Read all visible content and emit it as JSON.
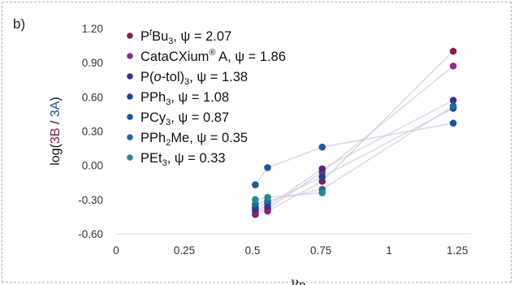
{
  "panel_label": "b)",
  "chart_data": {
    "type": "scatter",
    "xlabel": "νB",
    "ylabel": {
      "prefix": "log(",
      "num": "3B",
      "sep": " / ",
      "den": "3A",
      "suffix": ")"
    },
    "xlim": [
      0,
      1.3
    ],
    "ylim": [
      -0.6,
      1.2
    ],
    "x_ticks": [
      0,
      0.25,
      0.5,
      0.75,
      1,
      1.25
    ],
    "x_tick_labels": [
      "0",
      "0.25",
      "0.5",
      "0.75",
      "1",
      "1.25"
    ],
    "y_ticks": [
      -0.6,
      -0.3,
      0,
      0.3,
      0.6,
      0.9,
      1.2
    ],
    "y_tick_labels": [
      "-0.60",
      "-0.30",
      "0.00",
      "0.30",
      "0.60",
      "0.90",
      "1.20"
    ],
    "grid": false,
    "legend_position": "top-left",
    "colors": {
      "num": "#8b1a4e",
      "den": "#1f4e9b",
      "trend": "#d4cbe2"
    },
    "series": [
      {
        "name": "PtBu3, ψ = 2.07",
        "color": "#8c1a4f",
        "x": [
          0.51,
          0.555,
          0.755,
          1.235
        ],
        "y": [
          -0.43,
          -0.4,
          -0.14,
          1.0
        ]
      },
      {
        "name": "CataCXium® A, ψ = 1.86",
        "color": "#8f2b8e",
        "x": [
          0.51,
          0.555,
          0.755,
          1.235
        ],
        "y": [
          -0.41,
          -0.38,
          -0.06,
          0.87
        ]
      },
      {
        "name": "P(o-tol)3, ψ = 1.38",
        "color": "#4b2a85",
        "x": [
          0.51,
          0.555,
          0.755,
          1.235
        ],
        "y": [
          -0.39,
          -0.36,
          -0.03,
          0.57
        ]
      },
      {
        "name": "PPh3, ψ = 1.08",
        "color": "#14449a",
        "x": [
          0.51,
          0.555,
          0.755,
          1.235
        ],
        "y": [
          -0.37,
          -0.33,
          -0.1,
          0.5
        ]
      },
      {
        "name": "PCy3, ψ = 0.87",
        "color": "#1a58a2",
        "x": [
          0.51,
          0.555,
          0.755,
          1.235
        ],
        "y": [
          -0.17,
          -0.02,
          0.16,
          0.37
        ]
      },
      {
        "name": "PPh2Me, ψ = 0.35",
        "color": "#1f6b95",
        "x": [
          0.51,
          0.555,
          0.755,
          1.235
        ],
        "y": [
          -0.34,
          -0.31,
          -0.21,
          0.52
        ]
      },
      {
        "name": "PEt3, ψ = 0.33",
        "color": "#258a92",
        "x": [
          0.51,
          0.555,
          0.755
        ],
        "y": [
          -0.3,
          -0.28,
          -0.24
        ]
      }
    ],
    "legend": [
      {
        "color": "#8c1a4f",
        "parts": [
          {
            "t": "P"
          },
          {
            "t": "t",
            "style": "sup-italic"
          },
          {
            "t": "Bu"
          },
          {
            "t": "3",
            "style": "sub"
          },
          {
            "t": ", ψ = 2.07"
          }
        ]
      },
      {
        "color": "#8f2b8e",
        "parts": [
          {
            "t": "CataCXium"
          },
          {
            "t": "®",
            "style": "sup"
          },
          {
            "t": " A, ψ = 1.86"
          }
        ]
      },
      {
        "color": "#4b2a85",
        "parts": [
          {
            "t": "P("
          },
          {
            "t": "o",
            "style": "italic"
          },
          {
            "t": "-tol)"
          },
          {
            "t": "3",
            "style": "sub"
          },
          {
            "t": ", ψ = 1.38"
          }
        ]
      },
      {
        "color": "#14449a",
        "parts": [
          {
            "t": "PPh"
          },
          {
            "t": "3",
            "style": "sub"
          },
          {
            "t": ", ψ = 1.08"
          }
        ]
      },
      {
        "color": "#1a58a2",
        "parts": [
          {
            "t": "PCy"
          },
          {
            "t": "3",
            "style": "sub"
          },
          {
            "t": ", ψ = 0.87"
          }
        ]
      },
      {
        "color": "#1f6b95",
        "parts": [
          {
            "t": "PPh"
          },
          {
            "t": "2",
            "style": "sub"
          },
          {
            "t": "Me, ψ = 0.35"
          }
        ]
      },
      {
        "color": "#258a92",
        "parts": [
          {
            "t": "PEt"
          },
          {
            "t": "3",
            "style": "sub"
          },
          {
            "t": ", ψ = 0.33"
          }
        ]
      }
    ]
  }
}
